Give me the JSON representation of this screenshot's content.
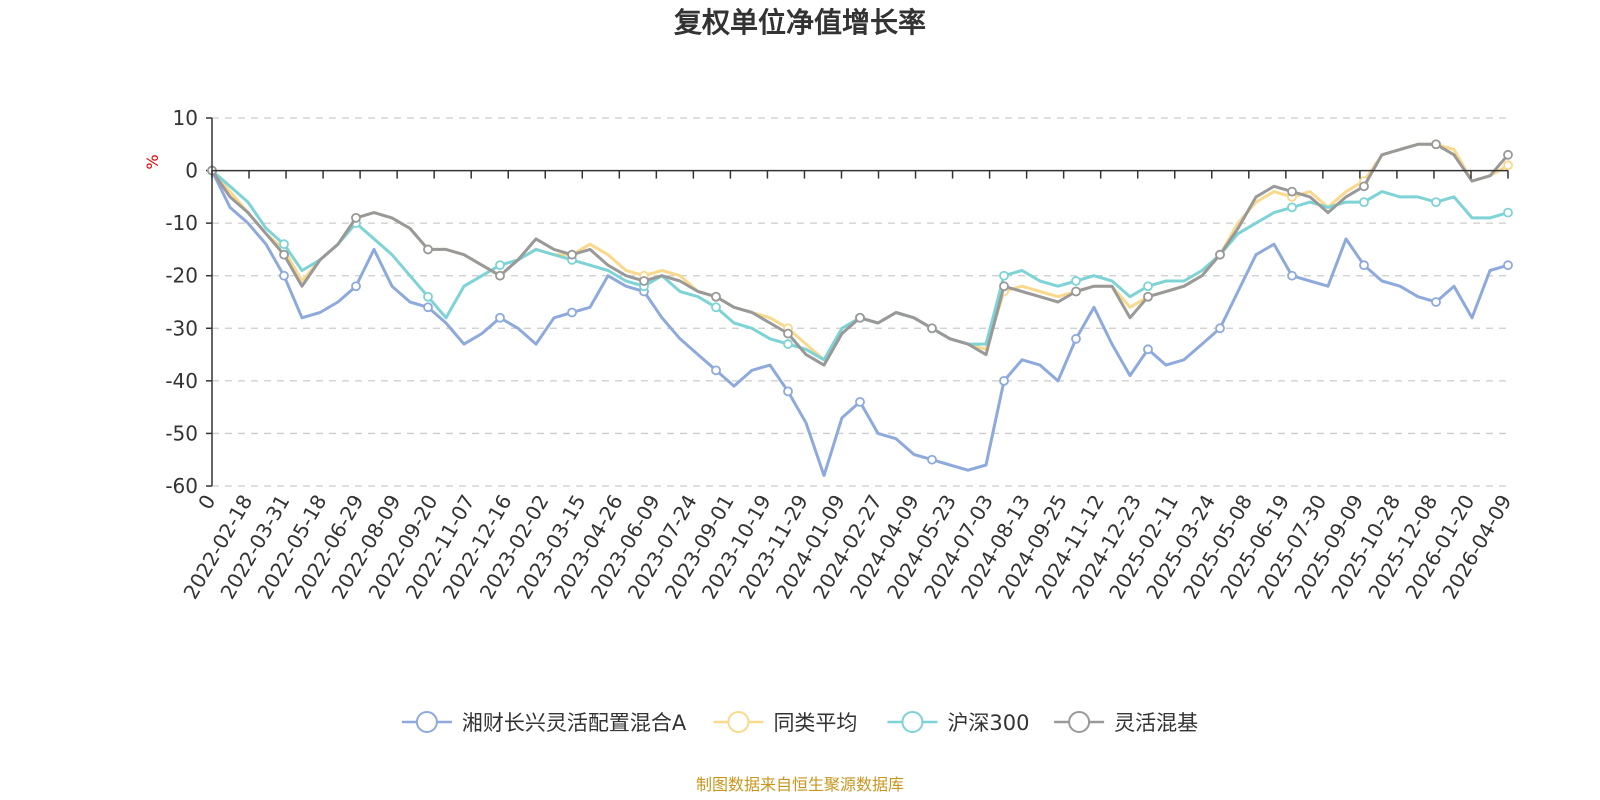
{
  "chart_data": {
    "type": "line",
    "title": "复权单位净值增长率",
    "ylabel": "%",
    "ylim": [
      -60,
      10
    ],
    "yticks": [
      10,
      0,
      -10,
      -20,
      -30,
      -40,
      -50,
      -60
    ],
    "x_tick_labels": [
      "0",
      "2022-02-18",
      "2022-03-31",
      "2022-05-18",
      "2022-06-29",
      "2022-08-09",
      "2022-09-20",
      "2022-11-07",
      "2022-12-16",
      "2023-02-02",
      "2023-03-15",
      "2023-04-26",
      "2023-06-09",
      "2023-07-24",
      "2023-09-01",
      "2023-10-19",
      "2023-11-29",
      "2024-01-09",
      "2024-02-27",
      "2024-04-09",
      "2024-05-23",
      "2024-07-03",
      "2024-08-13",
      "2024-09-25",
      "2024-11-12",
      "2024-12-23",
      "2025-02-11",
      "2025-03-24",
      "2025-05-08",
      "2025-06-19",
      "2025-07-30",
      "2025-09-09",
      "2025-10-28",
      "2025-12-08",
      "2026-01-20",
      "2026-04-09"
    ],
    "x_index": [
      0,
      1,
      2,
      3,
      4,
      5,
      6,
      7,
      8,
      9,
      10,
      11,
      12,
      13,
      14,
      15,
      16,
      17,
      18,
      19,
      20,
      21,
      22,
      23,
      24,
      25,
      26,
      27,
      28,
      29,
      30,
      31,
      32,
      33,
      34,
      35,
      36,
      37,
      38,
      39,
      40,
      41,
      42,
      43,
      44,
      45,
      46,
      47,
      48,
      49,
      50,
      51,
      52,
      53,
      54,
      55,
      56,
      57,
      58,
      59,
      60,
      61,
      62,
      63,
      64,
      65,
      66,
      67,
      68,
      69,
      70,
      71,
      72
    ],
    "series": [
      {
        "name": "湘财长兴灵活配置混合A",
        "color": "#8eaadc",
        "values": [
          0,
          -7,
          -10,
          -14,
          -20,
          -28,
          -27,
          -25,
          -22,
          -15,
          -22,
          -25,
          -26,
          -29,
          -33,
          -31,
          -28,
          -30,
          -33,
          -28,
          -27,
          -26,
          -20,
          -22,
          -23,
          -28,
          -32,
          -35,
          -38,
          -41,
          -38,
          -37,
          -42,
          -48,
          -58,
          -47,
          -44,
          -50,
          -51,
          -54,
          -55,
          -56,
          -57,
          -56,
          -40,
          -36,
          -37,
          -40,
          -32,
          -26,
          -33,
          -39,
          -34,
          -37,
          -36,
          -33,
          -30,
          -23,
          -16,
          -14,
          -20,
          -21,
          -22,
          -13,
          -18,
          -21,
          -22,
          -24,
          -25,
          -22,
          -28,
          -19,
          -18
        ]
      },
      {
        "name": "同类平均",
        "color": "#fad98c",
        "values": [
          0,
          -4,
          -8,
          -12,
          -15,
          -21,
          -17,
          -14,
          -9,
          -8,
          -9,
          -11,
          -15,
          -15,
          -16,
          -18,
          -20,
          -17,
          -15,
          -16,
          -16,
          -14,
          -16,
          -19,
          -20,
          -19,
          -20,
          -23,
          -24,
          -26,
          -27,
          -28,
          -30,
          -33,
          -36,
          -30,
          -28,
          -29,
          -27,
          -28,
          -30,
          -32,
          -33,
          -34,
          -23,
          -22,
          -23,
          -24,
          -23,
          -22,
          -22,
          -26,
          -24,
          -23,
          -22,
          -20,
          -16,
          -10,
          -6,
          -4,
          -5,
          -4,
          -7,
          -4,
          -2,
          3,
          4,
          5,
          5,
          4,
          -2,
          -1,
          1
        ]
      },
      {
        "name": "沪深300",
        "color": "#7ed3d6",
        "values": [
          0,
          -3,
          -6,
          -11,
          -14,
          -19,
          -17,
          -14,
          -10,
          -13,
          -16,
          -20,
          -24,
          -28,
          -22,
          -20,
          -18,
          -17,
          -15,
          -16,
          -17,
          -18,
          -19,
          -21,
          -22,
          -20,
          -23,
          -24,
          -26,
          -29,
          -30,
          -32,
          -33,
          -34,
          -36,
          -30,
          -28,
          -29,
          -27,
          -28,
          -30,
          -32,
          -33,
          -33,
          -20,
          -19,
          -21,
          -22,
          -21,
          -20,
          -21,
          -24,
          -22,
          -21,
          -21,
          -19,
          -16,
          -12,
          -10,
          -8,
          -7,
          -6,
          -7,
          -6,
          -6,
          -4,
          -5,
          -5,
          -6,
          -5,
          -9,
          -9,
          -8
        ]
      },
      {
        "name": "灵活混基",
        "color": "#999999",
        "values": [
          0,
          -5,
          -8,
          -12,
          -16,
          -22,
          -17,
          -14,
          -9,
          -8,
          -9,
          -11,
          -15,
          -15,
          -16,
          -18,
          -20,
          -17,
          -13,
          -15,
          -16,
          -15,
          -18,
          -20,
          -21,
          -20,
          -21,
          -23,
          -24,
          -26,
          -27,
          -29,
          -31,
          -35,
          -37,
          -31,
          -28,
          -29,
          -27,
          -28,
          -30,
          -32,
          -33,
          -35,
          -22,
          -23,
          -24,
          -25,
          -23,
          -22,
          -22,
          -28,
          -24,
          -23,
          -22,
          -20,
          -16,
          -11,
          -5,
          -3,
          -4,
          -5,
          -8,
          -5,
          -3,
          3,
          4,
          5,
          5,
          3,
          -2,
          -1,
          3
        ]
      }
    ],
    "legend_position": "bottom",
    "grid": true
  },
  "footer": {
    "source": "制图数据来自恒生聚源数据库"
  }
}
